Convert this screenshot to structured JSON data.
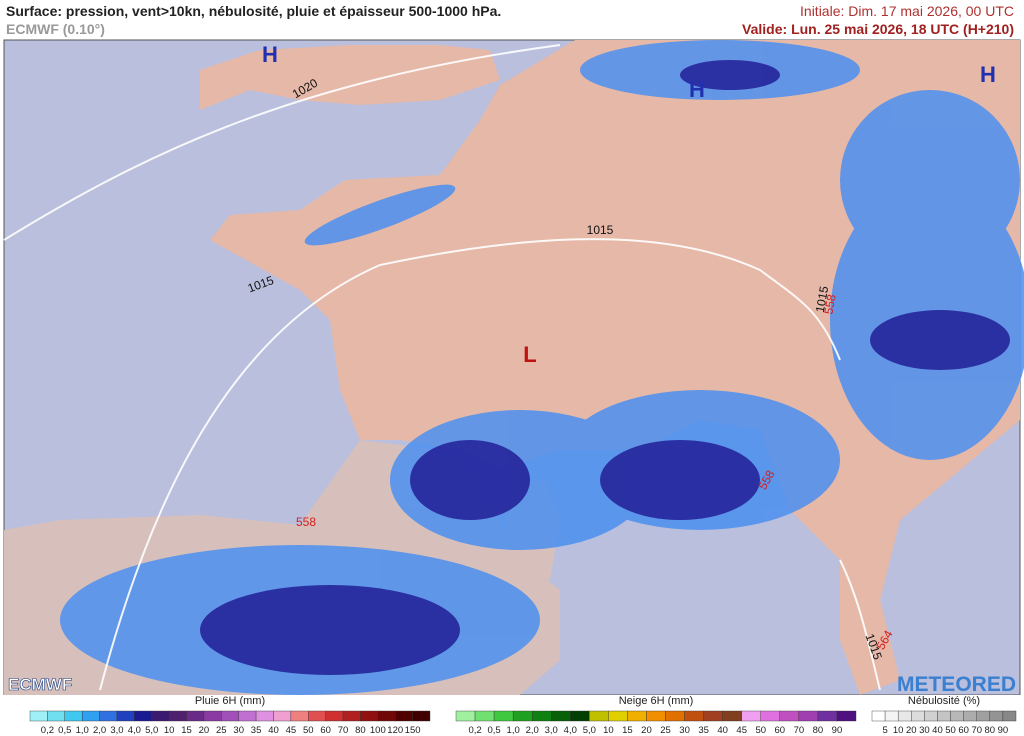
{
  "header": {
    "title": "Surface: pression, vent>10kn, nébulosité, pluie et épaisseur 500-1000 hPa.",
    "model": "ECMWF (0.10°)",
    "initial": "Initiale: Dim. 17 mai 2026, 00 UTC",
    "valid": "Valide: Lun. 25 mai 2026, 18 UTC (H+210)"
  },
  "map": {
    "pressure_centers": [
      "H",
      "H",
      "H",
      "L"
    ],
    "isobar_labels": [
      "1020",
      "1015",
      "1015",
      "1015",
      "1015"
    ],
    "thickness_labels": [
      "558",
      "558",
      "558",
      "564"
    ]
  },
  "logos": {
    "left": "ECMWF",
    "right": "METEORED"
  },
  "legend": {
    "rain": {
      "title": "Pluie 6H (mm)",
      "ticks": [
        "0,2",
        "0,5",
        "1,0",
        "2,0",
        "3,0",
        "4,0",
        "5,0",
        "10",
        "15",
        "20",
        "25",
        "30",
        "35",
        "40",
        "45",
        "50",
        "60",
        "70",
        "80",
        "100",
        "120",
        "150"
      ]
    },
    "snow": {
      "title": "Neige 6H (mm)",
      "ticks": [
        "0,2",
        "0,5",
        "1,0",
        "2,0",
        "3,0",
        "4,0",
        "5,0",
        "10",
        "15",
        "20",
        "25",
        "30",
        "35",
        "40",
        "45",
        "50",
        "60",
        "70",
        "80",
        "90"
      ]
    },
    "cloud": {
      "title": "Nébulosité (%)",
      "ticks": [
        "5",
        "10",
        "20",
        "30",
        "40",
        "50",
        "60",
        "70",
        "80",
        "90"
      ]
    }
  }
}
